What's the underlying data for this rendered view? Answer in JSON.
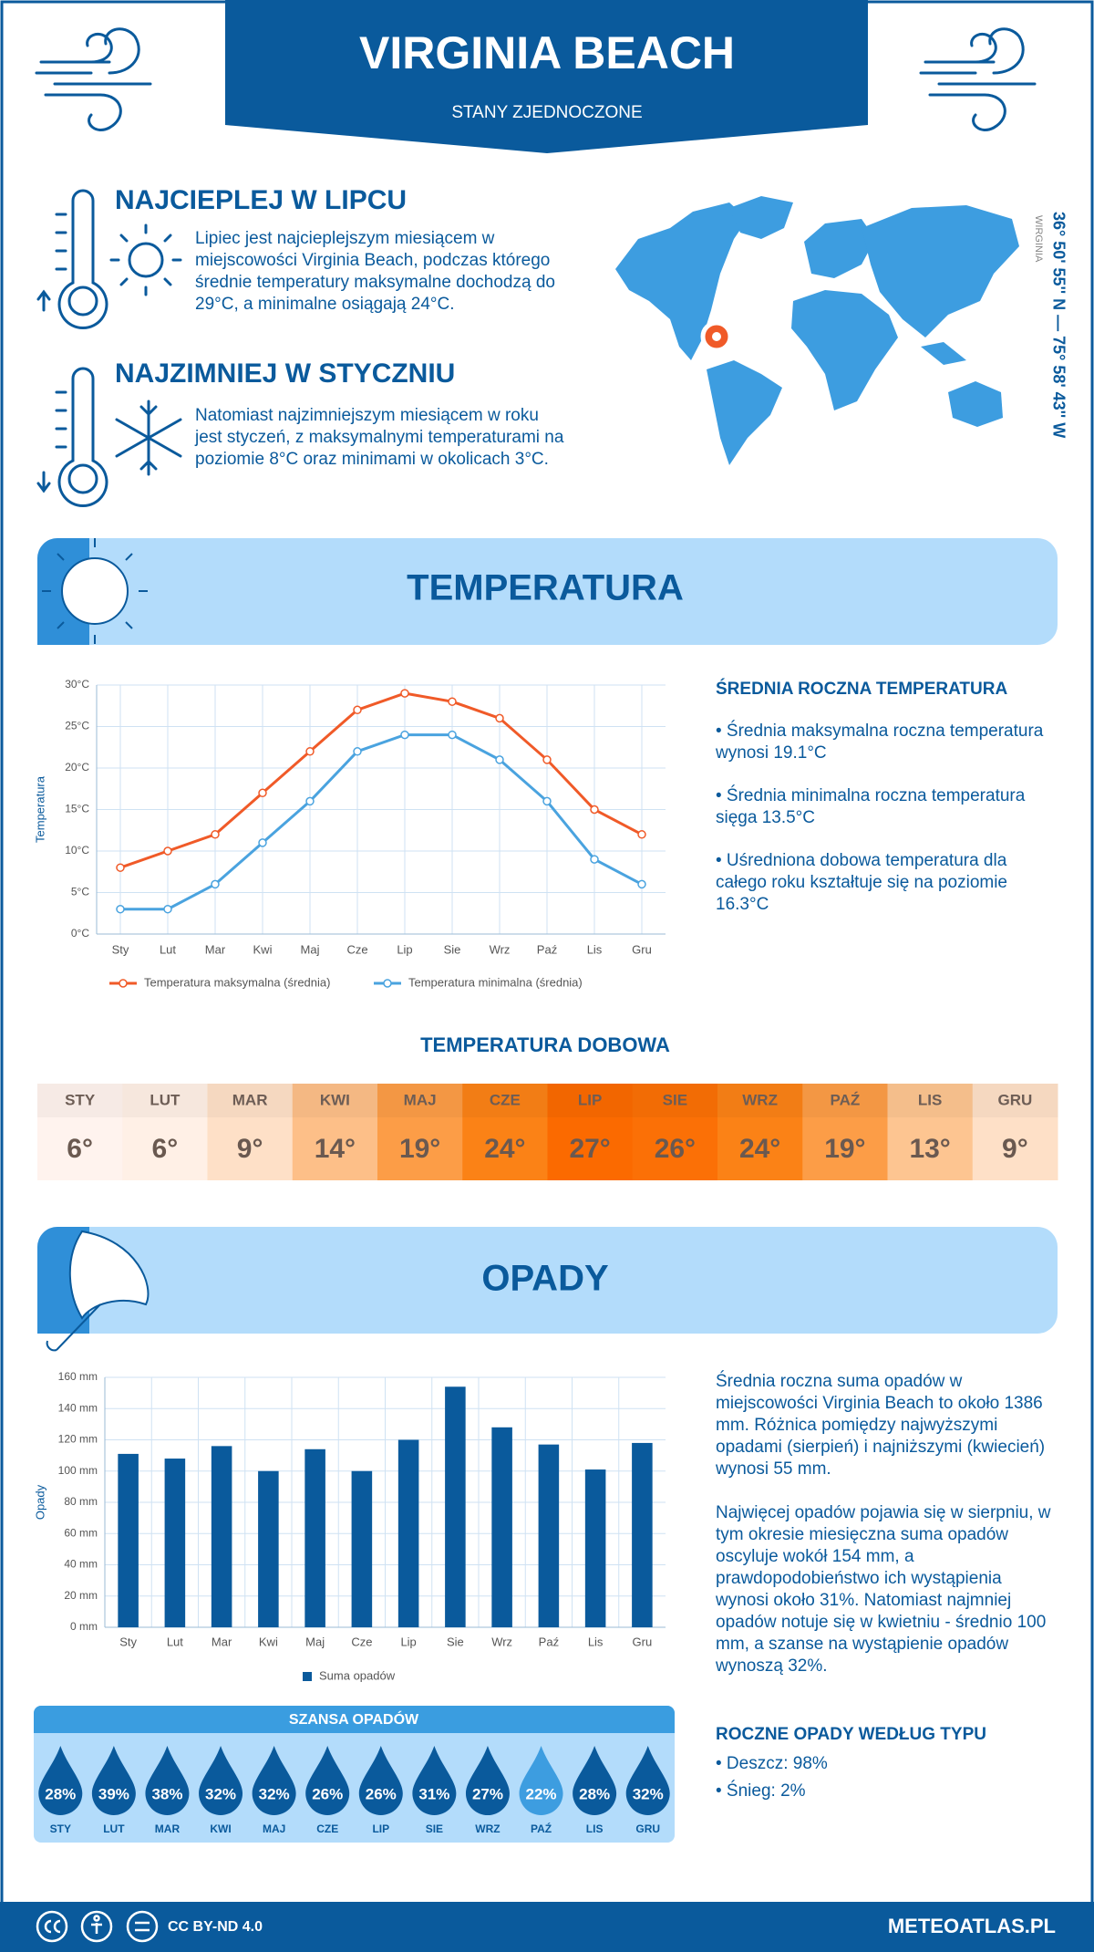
{
  "header": {
    "title": "VIRGINIA BEACH",
    "subtitle": "STANY ZJEDNOCZONE"
  },
  "warmest": {
    "title": "NAJCIEPLEJ W LIPCU",
    "text": "Lipiec jest najcieplejszym miesiącem w miejscowości Virginia Beach, podczas którego średnie temperatury maksymalne dochodzą do 29°C, a minimalne osiągają 24°C."
  },
  "coldest": {
    "title": "NAJZIMNIEJ W STYCZNIU",
    "text": "Natomiast najzimniejszym miesiącem w roku jest styczeń, z maksymalnymi temperaturami na poziomie 8°C oraz minimami w okolicach 3°C."
  },
  "location": {
    "coordinates": "36° 50' 55'' N — 75° 58' 43'' W",
    "region": "WIRGINIA"
  },
  "temperature_section": {
    "title": "TEMPERATURA"
  },
  "temperature_summary": {
    "title": "ŚREDNIA ROCZNA TEMPERATURA",
    "items": [
      "• Średnia maksymalna roczna temperatura wynosi 19.1°C",
      "• Średnia minimalna roczna temperatura sięga 13.5°C",
      "• Uśredniona dobowa temperatura dla całego roku kształtuje się na poziomie 16.3°C"
    ]
  },
  "daily_temperature": {
    "title": "TEMPERATURA DOBOWA",
    "months": [
      "STY",
      "LUT",
      "MAR",
      "KWI",
      "MAJ",
      "CZE",
      "LIP",
      "SIE",
      "WRZ",
      "PAŹ",
      "LIS",
      "GRU"
    ],
    "values": [
      "6°",
      "6°",
      "9°",
      "14°",
      "19°",
      "24°",
      "27°",
      "26°",
      "24°",
      "19°",
      "13°",
      "9°"
    ],
    "colors": [
      "#fff3ee",
      "#fff0e6",
      "#fee0c7",
      "#fdbf88",
      "#fc9d47",
      "#fb8216",
      "#fb6a00",
      "#fb7006",
      "#fb8216",
      "#fc9d47",
      "#fdc591",
      "#fee0c7"
    ]
  },
  "precipitation_section": {
    "title": "OPADY"
  },
  "chart_data": [
    {
      "type": "line",
      "y_label": "Temperatura",
      "categories": [
        "Sty",
        "Lut",
        "Mar",
        "Kwi",
        "Maj",
        "Cze",
        "Lip",
        "Sie",
        "Wrz",
        "Paź",
        "Lis",
        "Gru"
      ],
      "series": [
        {
          "name": "Temperatura maksymalna (średnia)",
          "color": "#f05a28",
          "values": [
            8,
            10,
            12,
            17,
            22,
            27,
            29,
            28,
            26,
            21,
            15,
            12
          ]
        },
        {
          "name": "Temperatura minimalna (średnia)",
          "color": "#4aa3df",
          "values": [
            3,
            3,
            6,
            11,
            16,
            22,
            24,
            24,
            21,
            16,
            9,
            6
          ]
        }
      ],
      "ylim": [
        0,
        30
      ],
      "yticks": [
        {
          "value": 0,
          "label": "0°C"
        },
        {
          "value": 5,
          "label": "5°C"
        },
        {
          "value": 10,
          "label": "10°C"
        },
        {
          "value": 15,
          "label": "15°C"
        },
        {
          "value": 20,
          "label": "20°C"
        },
        {
          "value": 25,
          "label": "25°C"
        },
        {
          "value": 30,
          "label": "30°C"
        }
      ],
      "grid": true,
      "legend": "bottom"
    },
    {
      "type": "bar",
      "y_label": "Opady",
      "categories": [
        "Sty",
        "Lut",
        "Mar",
        "Kwi",
        "Maj",
        "Cze",
        "Lip",
        "Sie",
        "Wrz",
        "Paź",
        "Lis",
        "Gru"
      ],
      "series": [
        {
          "name": "Suma opadów",
          "color": "#0a5a9c",
          "values": [
            111,
            108,
            116,
            100,
            114,
            100,
            120,
            154,
            128,
            117,
            101,
            118
          ]
        }
      ],
      "ylim": [
        0,
        160
      ],
      "yticks": [
        {
          "value": 0,
          "label": "0 mm"
        },
        {
          "value": 20,
          "label": "20 mm"
        },
        {
          "value": 40,
          "label": "40 mm"
        },
        {
          "value": 60,
          "label": "60 mm"
        },
        {
          "value": 80,
          "label": "80 mm"
        },
        {
          "value": 100,
          "label": "100 mm"
        },
        {
          "value": 120,
          "label": "120 mm"
        },
        {
          "value": 140,
          "label": "140 mm"
        },
        {
          "value": 160,
          "label": "160 mm"
        }
      ],
      "grid": true,
      "legend": "bottom"
    }
  ],
  "precipitation_text": [
    "Średnia roczna suma opadów w miejscowości Virginia Beach to około 1386 mm. Różnica pomiędzy najwyższymi opadami (sierpień) i najniższymi (kwiecień) wynosi 55 mm.",
    "Najwięcej opadów pojawia się w sierpniu, w tym okresie miesięczna suma opadów oscyluje wokół 154 mm, a prawdopodobieństwo ich wystąpienia wynosi około 31%. Natomiast najmniej opadów notuje się w kwietniu - średnio 100 mm, a szanse na wystąpienie opadów wynoszą 32%."
  ],
  "precipitation_chance": {
    "title": "SZANSA OPADÓW",
    "months": [
      "STY",
      "LUT",
      "MAR",
      "KWI",
      "MAJ",
      "CZE",
      "LIP",
      "SIE",
      "WRZ",
      "PAŹ",
      "LIS",
      "GRU"
    ],
    "values": [
      "28%",
      "39%",
      "38%",
      "32%",
      "32%",
      "26%",
      "26%",
      "31%",
      "27%",
      "22%",
      "28%",
      "32%"
    ],
    "colors": [
      "#0a5a9c",
      "#0a5a9c",
      "#0a5a9c",
      "#0a5a9c",
      "#0a5a9c",
      "#0a5a9c",
      "#0a5a9c",
      "#0a5a9c",
      "#0a5a9c",
      "#3d9de0",
      "#0a5a9c",
      "#0a5a9c"
    ]
  },
  "precipitation_types": {
    "title": "ROCZNE OPADY WEDŁUG TYPU",
    "items": [
      "• Deszcz: 98%",
      "• Śnieg: 2%"
    ]
  },
  "footer": {
    "license": "CC BY-ND 4.0",
    "site": "METEOATLAS.PL"
  }
}
